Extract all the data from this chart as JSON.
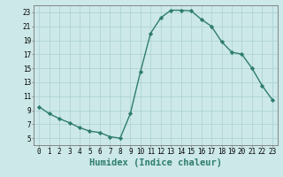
{
  "x": [
    0,
    1,
    2,
    3,
    4,
    5,
    6,
    7,
    8,
    9,
    10,
    11,
    12,
    13,
    14,
    15,
    16,
    17,
    18,
    19,
    20,
    21,
    22,
    23
  ],
  "y": [
    9.5,
    8.5,
    7.8,
    7.2,
    6.5,
    6.0,
    5.8,
    5.2,
    5.0,
    8.5,
    14.5,
    20.0,
    22.2,
    23.3,
    23.3,
    23.2,
    22.0,
    21.0,
    18.8,
    17.3,
    17.0,
    15.0,
    12.5,
    10.5
  ],
  "line_color": "#2e7d6e",
  "marker": "D",
  "markersize": 2.2,
  "linewidth": 1.0,
  "bg_color": "#cce8e8",
  "grid_color": "#aad0d0",
  "xlabel": "Humidex (Indice chaleur)",
  "xlabel_fontsize": 7.5,
  "ylim": [
    4,
    24
  ],
  "xlim": [
    -0.5,
    23.5
  ],
  "yticks": [
    5,
    7,
    9,
    11,
    13,
    15,
    17,
    19,
    21,
    23
  ],
  "xticks": [
    0,
    1,
    2,
    3,
    4,
    5,
    6,
    7,
    8,
    9,
    10,
    11,
    12,
    13,
    14,
    15,
    16,
    17,
    18,
    19,
    20,
    21,
    22,
    23
  ],
  "xtick_labels": [
    "0",
    "1",
    "2",
    "3",
    "4",
    "5",
    "6",
    "7",
    "8",
    "9",
    "10",
    "11",
    "12",
    "13",
    "14",
    "15",
    "16",
    "17",
    "18",
    "19",
    "20",
    "21",
    "22",
    "23"
  ],
  "tick_fontsize": 5.5,
  "xlabel_color": "#2e7d6e"
}
